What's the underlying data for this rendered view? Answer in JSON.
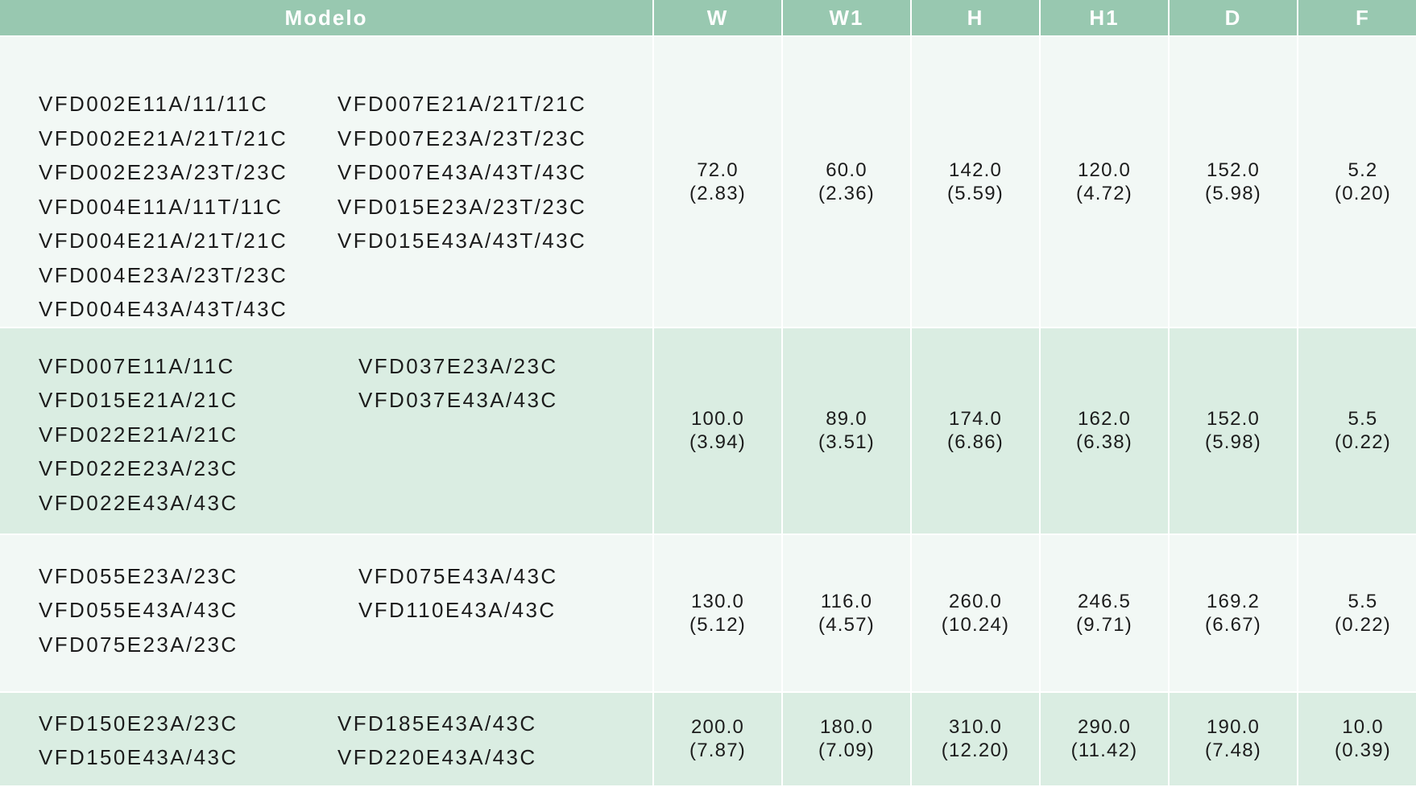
{
  "headers": [
    "Modelo",
    "W",
    "W1",
    "H",
    "H1",
    "D",
    "F"
  ],
  "rows": [
    {
      "models": [
        [
          "VFD002E11A/11/11C",
          "VFD002E21A/21T/21C",
          "VFD002E23A/23T/23C",
          "VFD004E11A/11T/11C",
          "VFD004E21A/21T/21C",
          "VFD004E23A/23T/23C",
          "VFD004E43A/43T/43C"
        ],
        [
          "VFD007E21A/21T/21C",
          "VFD007E23A/23T/23C",
          "VFD007E43A/43T/43C",
          "VFD015E23A/23T/23C",
          "VFD015E43A/43T/43C"
        ]
      ],
      "values": [
        [
          "72.0",
          "(2.83)"
        ],
        [
          "60.0",
          "(2.36)"
        ],
        [
          "142.0",
          "(5.59)"
        ],
        [
          "120.0",
          "(4.72)"
        ],
        [
          "152.0",
          "(5.98)"
        ],
        [
          "5.2",
          "(0.20)"
        ]
      ]
    },
    {
      "models": [
        [
          "VFD007E11A/11C",
          "VFD015E21A/21C",
          "VFD022E21A/21C",
          "VFD022E23A/23C",
          "VFD022E43A/43C"
        ],
        [
          "VFD037E23A/23C",
          "VFD037E43A/43C"
        ]
      ],
      "values": [
        [
          "100.0",
          "(3.94)"
        ],
        [
          "89.0",
          "(3.51)"
        ],
        [
          "174.0",
          "(6.86)"
        ],
        [
          "162.0",
          "(6.38)"
        ],
        [
          "152.0",
          "(5.98)"
        ],
        [
          "5.5",
          "(0.22)"
        ]
      ]
    },
    {
      "models": [
        [
          "VFD055E23A/23C",
          "VFD055E43A/43C",
          "VFD075E23A/23C"
        ],
        [
          "VFD075E43A/43C",
          "VFD110E43A/43C"
        ]
      ],
      "values": [
        [
          "130.0",
          "(5.12)"
        ],
        [
          "116.0",
          "(4.57)"
        ],
        [
          "260.0",
          "(10.24)"
        ],
        [
          "246.5",
          "(9.71)"
        ],
        [
          "169.2",
          "(6.67)"
        ],
        [
          "5.5",
          "(0.22)"
        ]
      ]
    },
    {
      "models": [
        [
          "VFD150E23A/23C",
          "VFD150E43A/43C"
        ],
        [
          "VFD185E43A/43C",
          "VFD220E43A/43C"
        ]
      ],
      "values": [
        [
          "200.0",
          "(7.87)"
        ],
        [
          "180.0",
          "(7.09)"
        ],
        [
          "310.0",
          "(12.20)"
        ],
        [
          "290.0",
          "(11.42)"
        ],
        [
          "190.0",
          "(7.48)"
        ],
        [
          "10.0",
          "(0.39)"
        ]
      ]
    }
  ],
  "colors": {
    "header_bg": "#98c8b0",
    "header_text": "#ffffff",
    "row_light": "#f2f8f5",
    "row_dark": "#daede2"
  }
}
